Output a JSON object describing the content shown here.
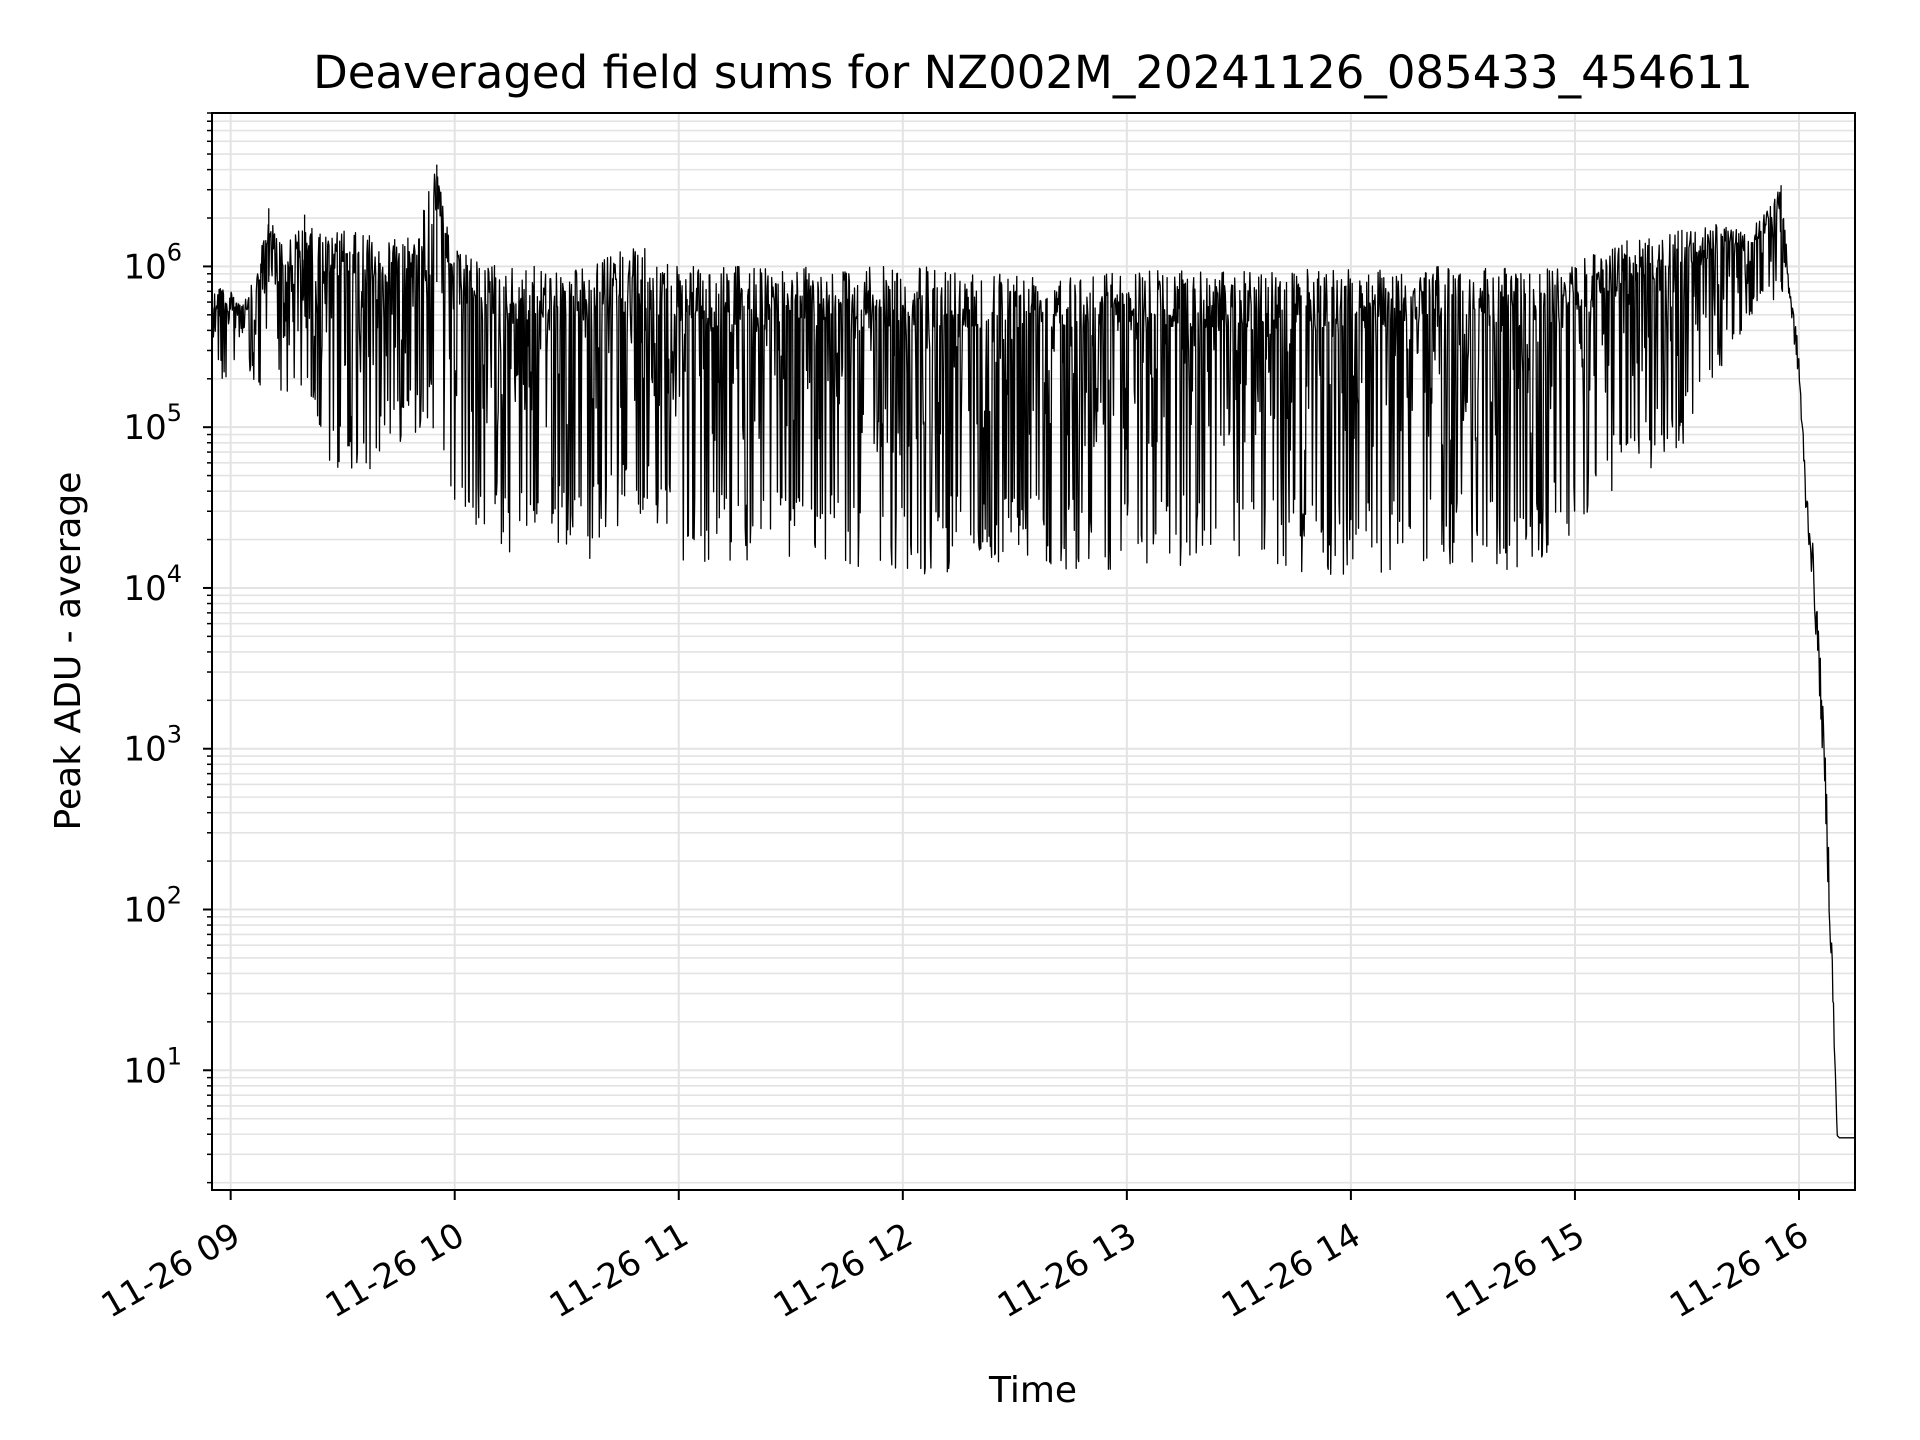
{
  "chart_data": {
    "type": "line",
    "title": "Deaveraged field sums for NZ002M_20241126_085433_454611",
    "xlabel": "Time",
    "ylabel": "Peak ADU - average",
    "yscale": "log",
    "ylim": [
      1.8,
      9000000
    ],
    "xlim": [
      "2024-11-26 08:55",
      "2024-11-26 16:15"
    ],
    "grid": "on",
    "line_color": "#000000",
    "xtick_labels": [
      "11-26 09",
      "11-26 10",
      "11-26 11",
      "11-26 12",
      "11-26 13",
      "11-26 14",
      "11-26 15",
      "11-26 16"
    ],
    "xtick_hours": [
      9,
      10,
      11,
      12,
      13,
      14,
      15,
      16
    ],
    "ytick_labels": [
      {
        "base": "10",
        "exp": "1"
      },
      {
        "base": "10",
        "exp": "2"
      },
      {
        "base": "10",
        "exp": "3"
      },
      {
        "base": "10",
        "exp": "4"
      },
      {
        "base": "10",
        "exp": "5"
      },
      {
        "base": "10",
        "exp": "6"
      }
    ],
    "ytick_values": [
      10,
      100,
      1000,
      10000,
      100000,
      1000000
    ],
    "series": [
      {
        "x_hours": [
          8.92,
          9.0,
          9.05,
          9.1,
          9.17,
          9.25,
          9.33,
          9.42,
          9.5,
          9.58,
          9.67,
          9.75,
          9.83,
          9.92,
          10.0,
          10.1,
          10.25,
          10.4,
          10.6,
          10.8,
          11.0,
          11.25,
          11.5,
          11.75,
          12.0,
          12.25,
          12.5,
          12.75,
          13.0,
          13.25,
          13.5,
          13.75,
          14.0,
          14.25,
          14.5,
          14.75,
          15.0,
          15.1,
          15.25,
          15.4,
          15.5,
          15.6,
          15.7,
          15.8,
          15.88,
          15.92,
          15.96,
          16.0,
          16.03,
          16.06,
          16.09,
          16.12,
          16.15,
          16.17,
          16.18,
          16.2,
          16.25
        ],
        "envelope_max": [
          900000,
          700000,
          600000,
          800000,
          2000000,
          1500000,
          1800000,
          1600000,
          1700000,
          1600000,
          1500000,
          1600000,
          1700000,
          4300000,
          1300000,
          1100000,
          1000000,
          1000000,
          1000000,
          1400000,
          1000000,
          1000000,
          1000000,
          1000000,
          1000000,
          1000000,
          950000,
          950000,
          950000,
          950000,
          950000,
          950000,
          1000000,
          1000000,
          1000000,
          1000000,
          1000000,
          1300000,
          1500000,
          1600000,
          1700000,
          1900000,
          1700000,
          1800000,
          2500000,
          3200000,
          800000,
          300000,
          50000,
          20000,
          5000,
          800,
          50,
          4,
          3.8,
          3.8,
          3.8
        ],
        "envelope_min": [
          200000,
          180000,
          400000,
          60000,
          500000,
          100000,
          150000,
          60000,
          50000,
          50000,
          60000,
          80000,
          90000,
          100000,
          30000,
          20000,
          15000,
          20000,
          15000,
          30000,
          15000,
          13000,
          15000,
          13000,
          11000,
          13000,
          14000,
          13000,
          13000,
          13000,
          13000,
          12000,
          11000,
          13000,
          14000,
          12000,
          20000,
          30000,
          50000,
          60000,
          80000,
          150000,
          300000,
          500000,
          600000,
          700000,
          350000,
          100000,
          15000,
          5000,
          1000,
          100,
          10,
          3.8,
          3.8,
          3.8,
          3.8
        ]
      }
    ]
  }
}
